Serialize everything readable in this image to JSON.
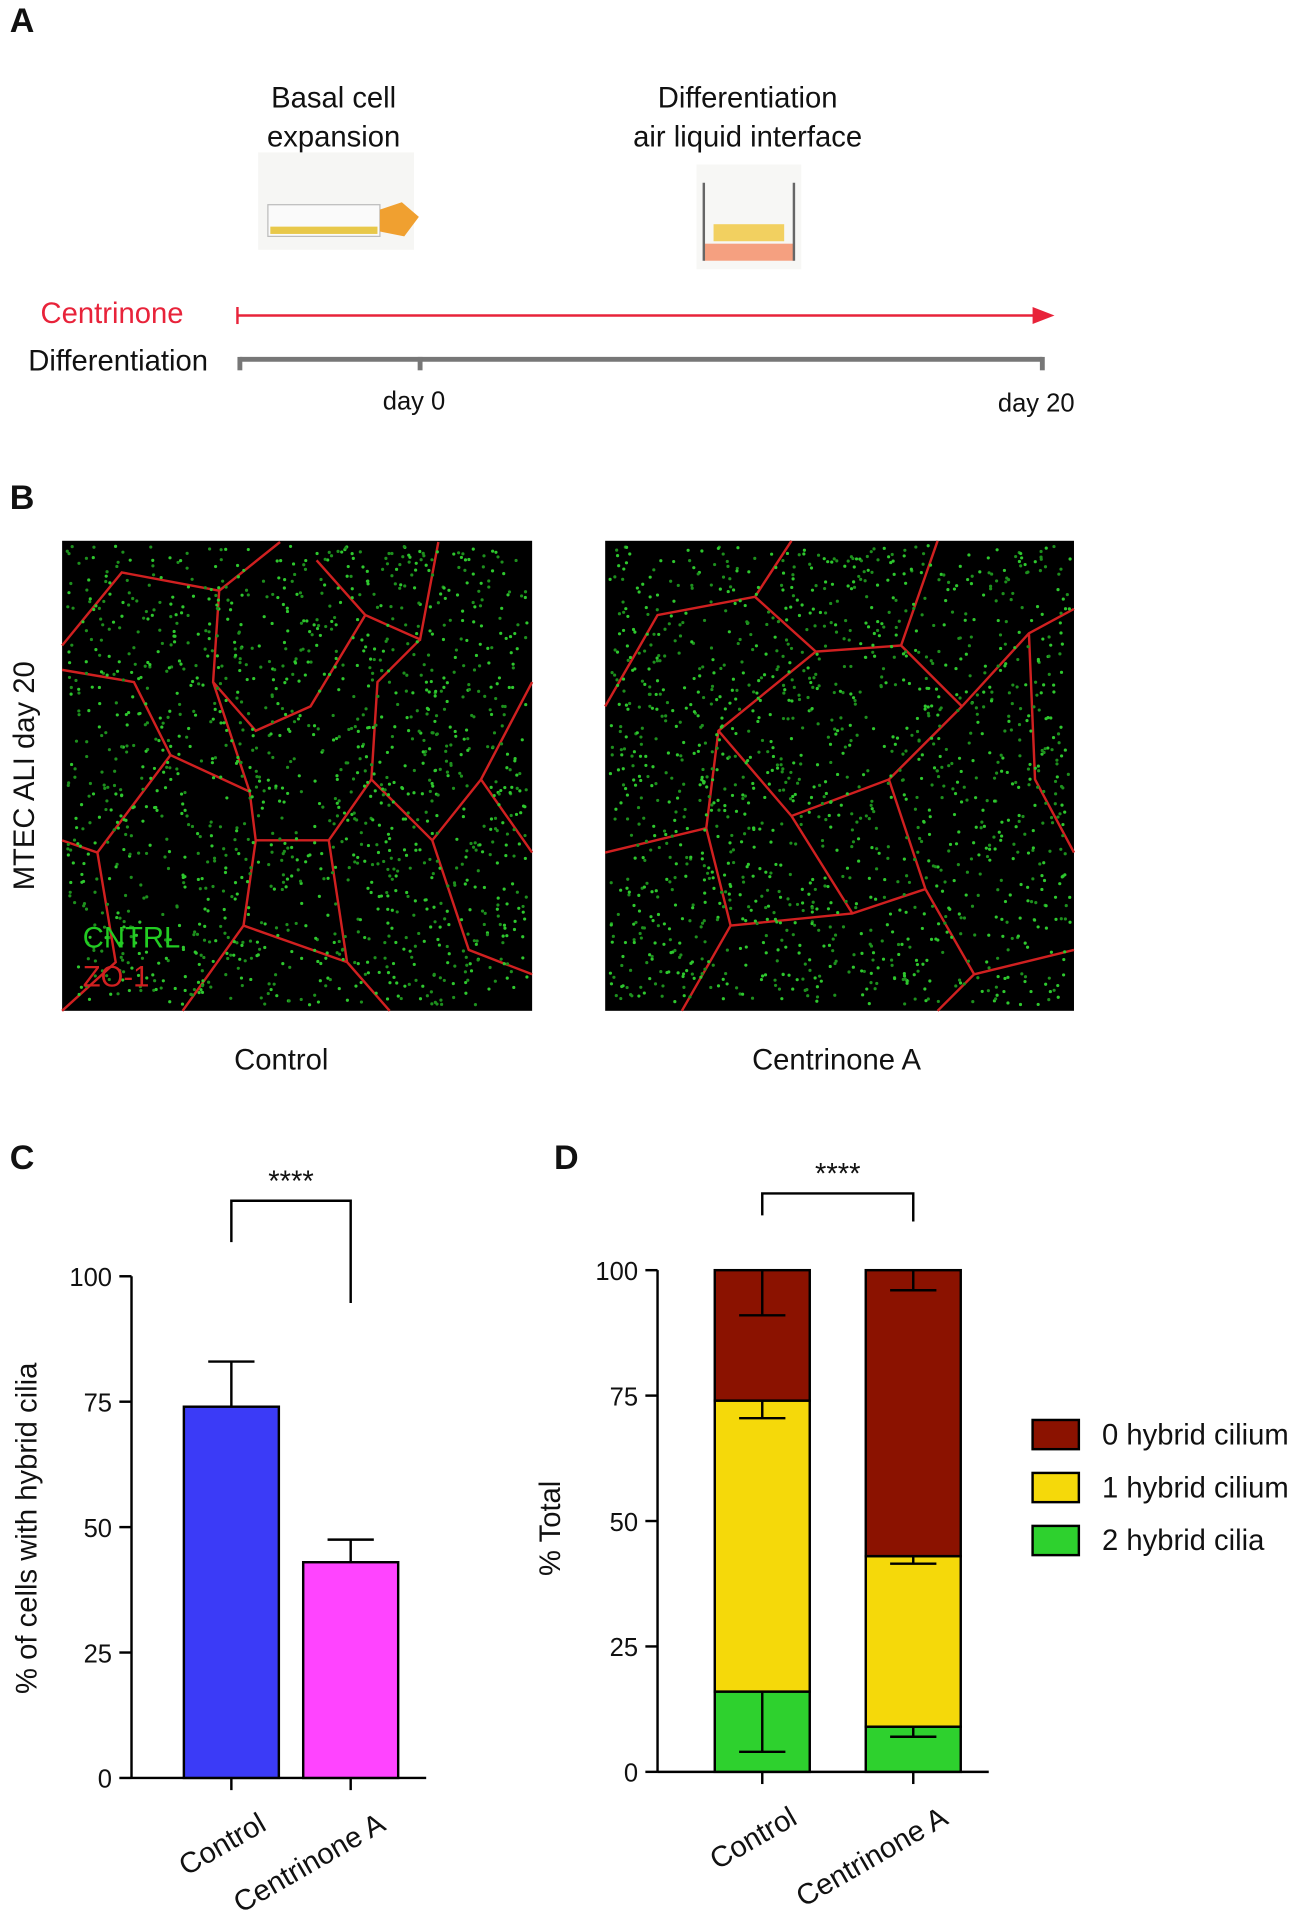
{
  "panel_labels": [
    "A",
    "B",
    "C",
    "D"
  ],
  "timeline": {
    "step_1": [
      "Basal cell",
      "expansion"
    ],
    "step_2": [
      "Differentiation",
      "air liquid interface"
    ],
    "treatment": "Centrinone",
    "track": "Differentiation",
    "day_labels": [
      "day 0",
      "day 20"
    ]
  },
  "images": {
    "row_label": "MTEC ALI day 20",
    "stains": [
      "CNTRL",
      "ZO-1"
    ],
    "captions": [
      "Control",
      "Centrinone A"
    ]
  },
  "chart_data": [
    {
      "type": "bar",
      "categories": [
        "Control",
        "Centrinone A"
      ],
      "values": [
        74,
        43
      ],
      "errors": [
        9,
        4.5
      ],
      "colors": [
        "#3b3bf7",
        "#ff44ff"
      ],
      "ylabel": "% of cells with hybrid cilia",
      "ylim": [
        0,
        100
      ],
      "yticks": [
        0,
        25,
        50,
        75,
        100
      ],
      "significance": "****"
    },
    {
      "type": "stacked_bar",
      "categories": [
        "Control",
        "Centrinone A"
      ],
      "series": [
        {
          "name": "2 hybrid cilia",
          "color": "#2ed12e",
          "values": [
            16,
            9
          ],
          "errors": [
            12,
            2
          ]
        },
        {
          "name": "1 hybrid cilium",
          "color": "#f5d90a",
          "values": [
            58,
            34
          ],
          "errors": [
            3.5,
            1.5
          ]
        },
        {
          "name": "0 hybrid cilium",
          "color": "#8b1200",
          "values": [
            26,
            57
          ],
          "errors": [
            9,
            4
          ]
        }
      ],
      "ylabel": "% Total",
      "ylim": [
        0,
        100
      ],
      "yticks": [
        0,
        25,
        50,
        75,
        100
      ],
      "significance": "****"
    }
  ]
}
